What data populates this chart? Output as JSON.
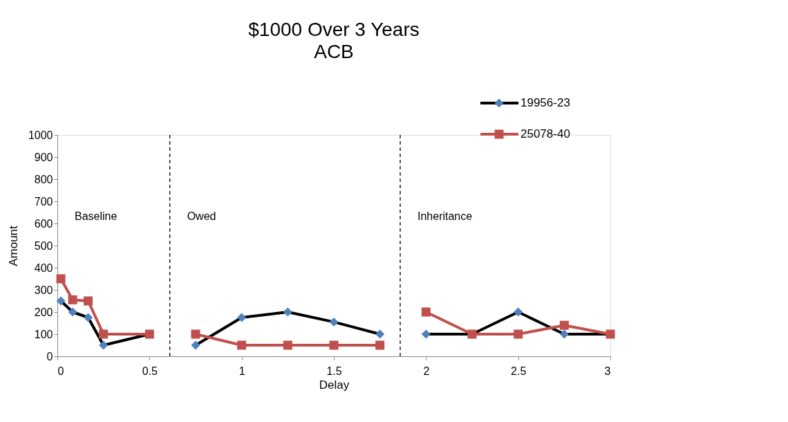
{
  "chart_data": {
    "type": "line",
    "title": "$1000 Over 3 Years",
    "subtitle": "ACB",
    "xlabel": "Delay",
    "ylabel": "Amount",
    "x": [
      0.019,
      0.083,
      0.167,
      0.25,
      0.5,
      0.75,
      1,
      1.25,
      1.5,
      1.75,
      2,
      2.25,
      2.5,
      2.75,
      3
    ],
    "series": [
      {
        "name": "19956-23",
        "color": "#000000",
        "marker": "diamond",
        "values": [
          250,
          200,
          175,
          50,
          100,
          50,
          175,
          200,
          155,
          100,
          100,
          100,
          200,
          100,
          100
        ]
      },
      {
        "name": "25078-40",
        "color": "#c0504d",
        "marker": "square",
        "values": [
          350,
          255,
          250,
          100,
          100,
          100,
          50,
          50,
          50,
          50,
          200,
          100,
          100,
          140,
          100
        ]
      }
    ],
    "xlim": [
      0,
      3
    ],
    "xticks": [
      0,
      0.5,
      1,
      1.5,
      2,
      2.5,
      3
    ],
    "ylim": [
      0,
      1000
    ],
    "yticks": [
      0,
      100,
      200,
      300,
      400,
      500,
      600,
      700,
      800,
      900,
      1000
    ],
    "ref_lines": [
      {
        "axis": "x",
        "value": 0.61,
        "line_style": "dashed",
        "color": "#000000"
      },
      {
        "axis": "x",
        "value": 1.86,
        "line_style": "dashed",
        "color": "#000000"
      }
    ],
    "annotations": [
      "Baseline",
      "Owed",
      "Inheritance"
    ],
    "grid": false,
    "legend": "top right",
    "line_style": "solid"
  }
}
